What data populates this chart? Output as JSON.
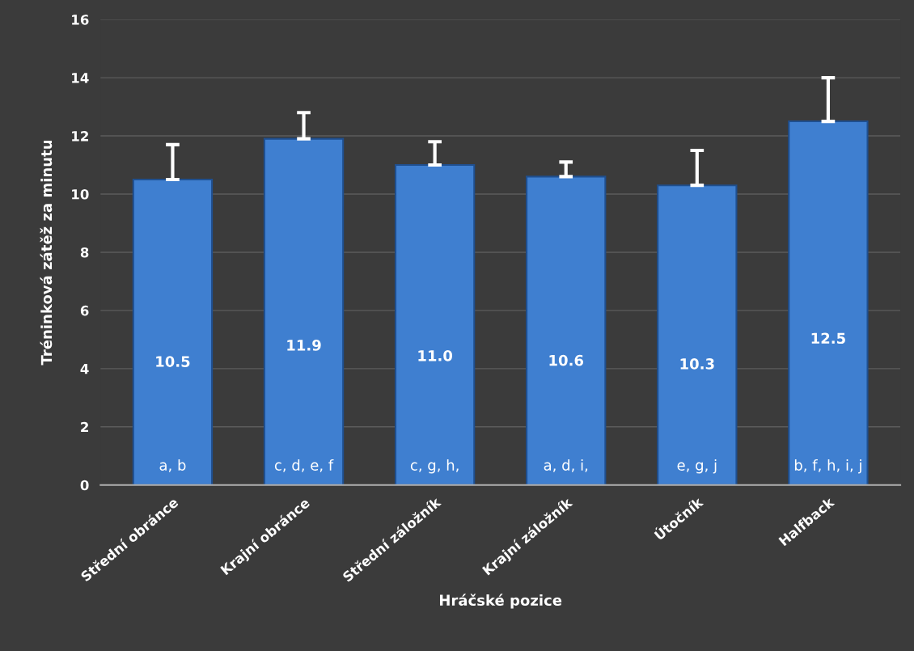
{
  "chart_data": {
    "type": "bar",
    "xlabel": "Hráčské pozice",
    "ylabel": "Tréninková zátěž za minutu",
    "categories": [
      "Střední obránce",
      "Krajní obránce",
      "Střední záložník",
      "Krajní záložník",
      "Útočník",
      "Halfback"
    ],
    "values": [
      10.5,
      11.9,
      11.0,
      10.6,
      10.3,
      12.5
    ],
    "errors": [
      [
        10.5,
        11.7
      ],
      [
        11.9,
        12.8
      ],
      [
        11.0,
        11.8
      ],
      [
        10.6,
        11.1
      ],
      [
        10.3,
        11.5
      ],
      [
        12.5,
        14.0
      ]
    ],
    "color": "#3f7fd0",
    "value_labels": [
      "10.5",
      "11.9",
      "11.0",
      "10.6",
      "10.3",
      "12.5"
    ],
    "annotations": [
      "a, b",
      "c, d, e, f",
      "c, g, h,",
      "a, d, i,",
      "e, g, j",
      "b, f, h, i, j"
    ],
    "ylim": [
      0,
      16
    ],
    "yticks": [
      0,
      2,
      4,
      6,
      8,
      10,
      12,
      14,
      16
    ],
    "grid": "y"
  }
}
